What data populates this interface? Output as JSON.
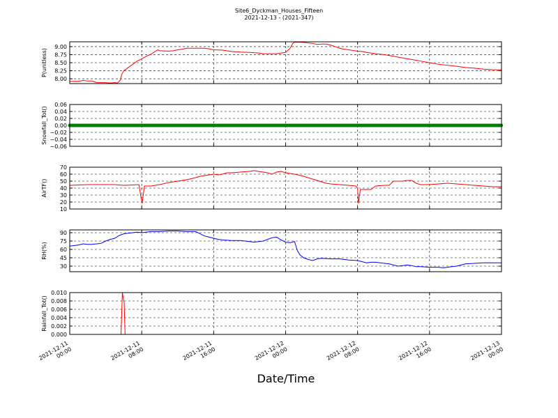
{
  "figure": {
    "title_line1": "Site6_Dyckman_Houses_Fifteen",
    "title_line2": "2021-12-13 - (2021-347)",
    "xlabel": "Date/Time"
  },
  "x_axis": {
    "ticks": [
      {
        "x": 0,
        "label": [
          "2021-12-11",
          "00:00"
        ]
      },
      {
        "x": 8,
        "label": [
          "2021-12-11",
          "08:00"
        ]
      },
      {
        "x": 16,
        "label": [
          "2021-12-11",
          "16:00"
        ]
      },
      {
        "x": 24,
        "label": [
          "2021-12-12",
          "00:00"
        ]
      },
      {
        "x": 32,
        "label": [
          "2021-12-12",
          "08:00"
        ]
      },
      {
        "x": 40,
        "label": [
          "2021-12-12",
          "16:00"
        ]
      },
      {
        "x": 48,
        "label": [
          "2021-12-13",
          "00:00"
        ]
      }
    ],
    "xlim": [
      0,
      48
    ]
  },
  "colors": {
    "pressure": "#ff0000",
    "snowfall": "#008000",
    "airtemp": "#ff0000",
    "rh": "#0000ff",
    "rainfall": "#ff0000"
  },
  "chart_data": [
    {
      "type": "line",
      "ylabel": "P(unitless)",
      "ylim": [
        7.85,
        9.15
      ],
      "yticks": [
        8.0,
        8.25,
        8.5,
        8.75,
        9.0
      ],
      "ytick_labels": [
        "8.00",
        "8.25",
        "8.50",
        "8.75",
        "9.00"
      ],
      "grid": true,
      "series": [
        {
          "color": "#ff0000",
          "points": [
            [
              0,
              7.92
            ],
            [
              1,
              7.92
            ],
            [
              1.5,
              7.95
            ],
            [
              2,
              7.93
            ],
            [
              2.5,
              7.93
            ],
            [
              3,
              7.88
            ],
            [
              4,
              7.88
            ],
            [
              4.5,
              7.87
            ],
            [
              5,
              7.88
            ],
            [
              5.3,
              7.87
            ],
            [
              5.6,
              7.95
            ],
            [
              5.8,
              8.15
            ],
            [
              6,
              8.25
            ],
            [
              6.5,
              8.35
            ],
            [
              7,
              8.45
            ],
            [
              7.5,
              8.55
            ],
            [
              8,
              8.62
            ],
            [
              8.5,
              8.7
            ],
            [
              9,
              8.76
            ],
            [
              9.5,
              8.85
            ],
            [
              9.8,
              8.9
            ],
            [
              10,
              8.87
            ],
            [
              11,
              8.86
            ],
            [
              11.5,
              8.87
            ],
            [
              12,
              8.9
            ],
            [
              12.5,
              8.92
            ],
            [
              13,
              8.95
            ],
            [
              14,
              8.95
            ],
            [
              15,
              8.95
            ],
            [
              15.5,
              8.93
            ],
            [
              16,
              8.9
            ],
            [
              17,
              8.89
            ],
            [
              18,
              8.85
            ],
            [
              19,
              8.83
            ],
            [
              20,
              8.82
            ],
            [
              21,
              8.8
            ],
            [
              21.5,
              8.78
            ],
            [
              22,
              8.78
            ],
            [
              23,
              8.78
            ],
            [
              23.5,
              8.8
            ],
            [
              24,
              8.82
            ],
            [
              24.5,
              8.95
            ],
            [
              24.8,
              9.1
            ],
            [
              25,
              9.14
            ],
            [
              25.5,
              9.14
            ],
            [
              26,
              9.13
            ],
            [
              27,
              9.1
            ],
            [
              27.5,
              9.07
            ],
            [
              28,
              9.08
            ],
            [
              28.5,
              9.08
            ],
            [
              29,
              9.05
            ],
            [
              29.5,
              9.0
            ],
            [
              30,
              8.95
            ],
            [
              30.5,
              8.92
            ],
            [
              31,
              8.9
            ],
            [
              31.5,
              8.88
            ],
            [
              32,
              8.86
            ],
            [
              32.5,
              8.85
            ],
            [
              33,
              8.82
            ],
            [
              34,
              8.78
            ],
            [
              35,
              8.75
            ],
            [
              36,
              8.7
            ],
            [
              37,
              8.65
            ],
            [
              38,
              8.6
            ],
            [
              39,
              8.55
            ],
            [
              40,
              8.5
            ],
            [
              41,
              8.45
            ],
            [
              42,
              8.42
            ],
            [
              43,
              8.39
            ],
            [
              44,
              8.35
            ],
            [
              45,
              8.33
            ],
            [
              46,
              8.3
            ],
            [
              47,
              8.28
            ],
            [
              48,
              8.28
            ]
          ]
        }
      ]
    },
    {
      "type": "scatter",
      "ylabel": "Snowfall_Tot()",
      "ylim": [
        -0.06,
        0.06
      ],
      "yticks": [
        -0.06,
        -0.04,
        -0.02,
        0.0,
        0.02,
        0.04,
        0.06
      ],
      "ytick_labels": [
        "−0.06",
        "−0.04",
        "−0.02",
        "0.00",
        "0.02",
        "0.04",
        "0.06"
      ],
      "grid": true,
      "series": [
        {
          "color": "#008000",
          "value": 0,
          "x_start": 0,
          "x_end": 48,
          "x_step": 0.0833
        }
      ]
    },
    {
      "type": "line",
      "ylabel": "AirTF()",
      "ylim": [
        10,
        70
      ],
      "yticks": [
        10,
        20,
        30,
        40,
        50,
        60,
        70
      ],
      "ytick_labels": [
        "10",
        "20",
        "30",
        "40",
        "50",
        "60",
        "70"
      ],
      "grid": true,
      "series": [
        {
          "color": "#ff0000",
          "points": [
            [
              0,
              44
            ],
            [
              2,
              45
            ],
            [
              4,
              45
            ],
            [
              5,
              45
            ],
            [
              6,
              44
            ],
            [
              7,
              44.5
            ],
            [
              7.7,
              45
            ],
            [
              7.9,
              28
            ],
            [
              8.05,
              18
            ],
            [
              8.3,
              43
            ],
            [
              9,
              43
            ],
            [
              10,
              45
            ],
            [
              11,
              48
            ],
            [
              12,
              50
            ],
            [
              13,
              52
            ],
            [
              14,
              55
            ],
            [
              14.5,
              57
            ],
            [
              15,
              58
            ],
            [
              15.5,
              59
            ],
            [
              16,
              60
            ],
            [
              16.5,
              59
            ],
            [
              17,
              60
            ],
            [
              17.5,
              62
            ],
            [
              18,
              62
            ],
            [
              19,
              63
            ],
            [
              20,
              64
            ],
            [
              20.5,
              65
            ],
            [
              21,
              64
            ],
            [
              22,
              62
            ],
            [
              22.5,
              60
            ],
            [
              23,
              63
            ],
            [
              23.5,
              64
            ],
            [
              24,
              62
            ],
            [
              25,
              60
            ],
            [
              26,
              57
            ],
            [
              27,
              53
            ],
            [
              28,
              49
            ],
            [
              28.5,
              47
            ],
            [
              29,
              46
            ],
            [
              30,
              45
            ],
            [
              31,
              44
            ],
            [
              31.8,
              43
            ],
            [
              32,
              40
            ],
            [
              32.1,
              18
            ],
            [
              32.3,
              38
            ],
            [
              33,
              38
            ],
            [
              33.5,
              38
            ],
            [
              34,
              43
            ],
            [
              35,
              44
            ],
            [
              35.5,
              44
            ],
            [
              36,
              50
            ],
            [
              37,
              50
            ],
            [
              37.5,
              51
            ],
            [
              38,
              51
            ],
            [
              38.5,
              47
            ],
            [
              39,
              45
            ],
            [
              40,
              45
            ],
            [
              41,
              46
            ],
            [
              42,
              47
            ],
            [
              43,
              46
            ],
            [
              44,
              45
            ],
            [
              45,
              44
            ],
            [
              46,
              43
            ],
            [
              47,
              42
            ],
            [
              48,
              42
            ]
          ]
        }
      ]
    },
    {
      "type": "line",
      "ylabel": "RH(%)",
      "ylim": [
        20,
        95
      ],
      "yticks": [
        30,
        45,
        60,
        75,
        90
      ],
      "ytick_labels": [
        "30",
        "45",
        "60",
        "75",
        "90"
      ],
      "grid": true,
      "series": [
        {
          "color": "#0000ff",
          "points": [
            [
              0,
              66
            ],
            [
              1,
              68
            ],
            [
              1.5,
              70
            ],
            [
              2,
              69
            ],
            [
              2.5,
              69
            ],
            [
              3,
              70
            ],
            [
              3.5,
              71
            ],
            [
              4,
              75
            ],
            [
              4.5,
              78
            ],
            [
              5,
              80
            ],
            [
              5.5,
              85
            ],
            [
              6,
              88
            ],
            [
              6.5,
              89
            ],
            [
              7,
              90
            ],
            [
              7.5,
              91
            ],
            [
              8,
              90
            ],
            [
              8.5,
              91
            ],
            [
              9,
              92
            ],
            [
              10,
              92
            ],
            [
              11,
              93
            ],
            [
              12,
              93
            ],
            [
              13,
              92
            ],
            [
              14,
              92
            ],
            [
              14.5,
              88
            ],
            [
              15,
              84
            ],
            [
              15.5,
              82
            ],
            [
              16,
              80
            ],
            [
              16.5,
              78
            ],
            [
              17,
              77
            ],
            [
              18,
              76
            ],
            [
              19,
              76
            ],
            [
              20,
              74
            ],
            [
              20.5,
              73
            ],
            [
              21,
              74
            ],
            [
              21.5,
              75
            ],
            [
              22,
              78
            ],
            [
              22.5,
              81
            ],
            [
              23,
              82
            ],
            [
              23.5,
              77
            ],
            [
              24,
              73
            ],
            [
              24.5,
              72
            ],
            [
              25,
              74
            ],
            [
              25.3,
              58
            ],
            [
              25.6,
              50
            ],
            [
              26,
              45
            ],
            [
              26.5,
              42
            ],
            [
              27,
              40
            ],
            [
              27.5,
              43
            ],
            [
              28,
              44
            ],
            [
              29,
              43
            ],
            [
              30,
              43
            ],
            [
              30.5,
              42
            ],
            [
              31,
              41
            ],
            [
              32,
              40
            ],
            [
              32.5,
              38
            ],
            [
              33,
              36
            ],
            [
              33.5,
              37
            ],
            [
              34,
              37
            ],
            [
              34.5,
              36
            ],
            [
              35,
              35
            ],
            [
              35.5,
              34
            ],
            [
              36,
              32
            ],
            [
              36.5,
              30
            ],
            [
              37,
              31
            ],
            [
              37.5,
              32
            ],
            [
              38,
              31
            ],
            [
              38.5,
              29
            ],
            [
              39,
              29
            ],
            [
              40,
              28
            ],
            [
              41,
              28
            ],
            [
              41.5,
              27
            ],
            [
              42,
              28
            ],
            [
              42.5,
              29
            ],
            [
              43,
              30
            ],
            [
              43.5,
              32
            ],
            [
              44,
              34
            ],
            [
              45,
              35
            ],
            [
              46,
              36
            ],
            [
              47,
              36
            ],
            [
              48,
              36
            ]
          ]
        }
      ]
    },
    {
      "type": "line",
      "ylabel": "Rainfall_Tot()",
      "ylim": [
        0,
        0.01
      ],
      "yticks": [
        0.0,
        0.002,
        0.004,
        0.006,
        0.008,
        0.01
      ],
      "ytick_labels": [
        "0.000",
        "0.002",
        "0.004",
        "0.006",
        "0.008",
        "0.010"
      ],
      "grid": true,
      "series": [
        {
          "color": "#ff0000",
          "points": [
            [
              0,
              0
            ],
            [
              5.7,
              0
            ],
            [
              5.85,
              0.01
            ],
            [
              6.05,
              0.0075
            ],
            [
              6.15,
              0
            ],
            [
              48,
              0
            ]
          ]
        }
      ]
    }
  ]
}
